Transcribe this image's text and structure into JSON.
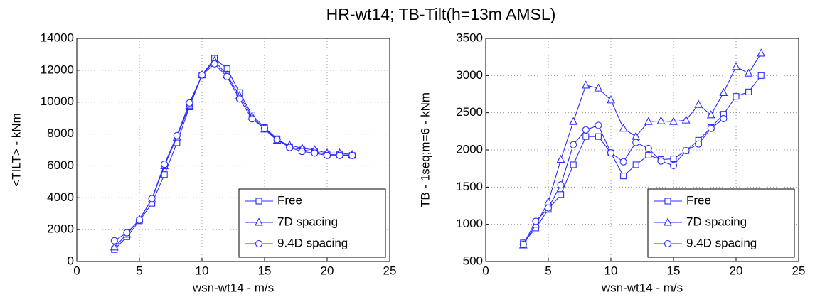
{
  "title": "HR-wt14; TB-Tilt(h=13m AMSL)",
  "chart_data": [
    {
      "type": "line",
      "xlabel": "wsn-wt14 - m/s",
      "ylabel": "<TILT> - kNm",
      "x": [
        3,
        4,
        5,
        6,
        7,
        8,
        9,
        10,
        11,
        12,
        13,
        14,
        15,
        16,
        17,
        18,
        19,
        20,
        21,
        22
      ],
      "series": [
        {
          "name": "Free",
          "color": "#2b2bff",
          "marker": "square",
          "values": [
            750,
            1550,
            2550,
            3650,
            5450,
            7450,
            9700,
            11700,
            12750,
            12100,
            10600,
            9200,
            8400,
            7700,
            7200,
            7000,
            6900,
            6700,
            6700,
            6650
          ]
        },
        {
          "name": "7D spacing",
          "color": "#2b2bff",
          "marker": "triangle",
          "values": [
            900,
            1700,
            2650,
            3900,
            6000,
            7800,
            9800,
            11700,
            12600,
            11700,
            10400,
            9100,
            8300,
            7600,
            7300,
            7100,
            7000,
            6800,
            6800,
            6700
          ]
        },
        {
          "name": "9.4D spacing",
          "color": "#2b2bff",
          "marker": "circle",
          "values": [
            1300,
            1800,
            2600,
            3950,
            6100,
            7900,
            9950,
            11700,
            12400,
            11600,
            10200,
            8950,
            8350,
            7650,
            7150,
            6900,
            6800,
            6650,
            6650,
            6650
          ]
        }
      ],
      "xlim": [
        0,
        25
      ],
      "xticks": [
        0,
        5,
        10,
        15,
        20,
        25
      ],
      "ylim": [
        0,
        14000
      ],
      "yticks": [
        0,
        2000,
        4000,
        6000,
        8000,
        10000,
        12000,
        14000
      ],
      "grid": true,
      "legend": "lower right"
    },
    {
      "type": "line",
      "xlabel": "wsn-wt14 - m/s",
      "ylabel": "TB - 1seq;m=6 - kNm",
      "x": [
        3,
        4,
        5,
        6,
        7,
        8,
        9,
        10,
        11,
        12,
        13,
        14,
        15,
        16,
        17,
        18,
        19,
        20,
        21,
        22
      ],
      "series": [
        {
          "name": "Free",
          "color": "#2b2bff",
          "marker": "square",
          "values": [
            750,
            950,
            1200,
            1400,
            1800,
            2180,
            2180,
            1960,
            1650,
            1800,
            1930,
            1870,
            1880,
            1990,
            2130,
            2300,
            2480,
            2720,
            2780,
            3000
          ]
        },
        {
          "name": "7D spacing",
          "color": "#2b2bff",
          "marker": "triangle",
          "values": [
            720,
            1000,
            1300,
            1870,
            2380,
            2870,
            2830,
            2670,
            2290,
            2180,
            2380,
            2390,
            2380,
            2400,
            2610,
            2470,
            2770,
            3120,
            3030,
            3300
          ]
        },
        {
          "name": "9.4D spacing",
          "color": "#2b2bff",
          "marker": "circle",
          "values": [
            730,
            1040,
            1220,
            1530,
            2070,
            2270,
            2330,
            1960,
            1840,
            2100,
            2020,
            1850,
            1790,
            1990,
            2080,
            2290,
            2420,
            null,
            null,
            null
          ]
        }
      ],
      "xlim": [
        0,
        25
      ],
      "xticks": [
        0,
        5,
        10,
        15,
        20,
        25
      ],
      "ylim": [
        500,
        3500
      ],
      "yticks": [
        500,
        1000,
        1500,
        2000,
        2500,
        3000,
        3500
      ],
      "grid": true,
      "legend": "lower right"
    }
  ]
}
